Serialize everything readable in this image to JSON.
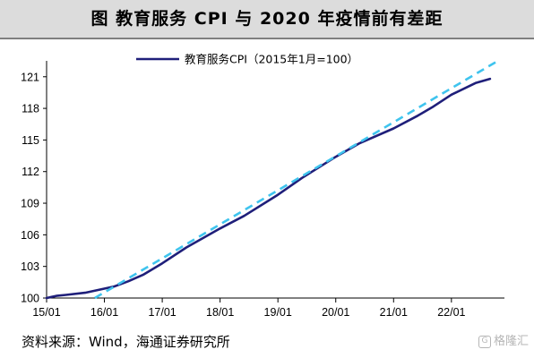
{
  "title": "图  教育服务 CPI 与 2020 年疫情前有差距",
  "source": "资料来源：Wind，海通证券研究所",
  "watermark": "格隆汇",
  "chart_data": {
    "type": "line",
    "legend": "教育服务CPI（2015年1月=100）",
    "legend_position": "top-center",
    "ylim": [
      100,
      122
    ],
    "yticks": [
      100,
      103,
      106,
      109,
      112,
      115,
      118,
      121
    ],
    "xlim": [
      "2015-01",
      "2022-12"
    ],
    "xticks": [
      "15/01",
      "16/01",
      "17/01",
      "18/01",
      "19/01",
      "20/01",
      "21/01",
      "22/01"
    ],
    "series": [
      {
        "name": "教育服务CPI（2015年1月=100）",
        "color": "#1f1f7a",
        "style": "solid",
        "points": [
          [
            "2015-01",
            100.0
          ],
          [
            "2015-02",
            100.1
          ],
          [
            "2015-03",
            100.2
          ],
          [
            "2015-05",
            100.3
          ],
          [
            "2015-09",
            100.5
          ],
          [
            "2015-12",
            100.8
          ],
          [
            "2016-03",
            101.1
          ],
          [
            "2016-06",
            101.6
          ],
          [
            "2016-09",
            102.2
          ],
          [
            "2017-01",
            103.3
          ],
          [
            "2017-06",
            104.8
          ],
          [
            "2018-01",
            106.6
          ],
          [
            "2018-06",
            107.8
          ],
          [
            "2019-01",
            109.8
          ],
          [
            "2019-06",
            111.4
          ],
          [
            "2020-01",
            113.4
          ],
          [
            "2020-06",
            114.7
          ],
          [
            "2021-01",
            116.1
          ],
          [
            "2021-06",
            117.3
          ],
          [
            "2021-09",
            118.1
          ],
          [
            "2022-01",
            119.3
          ],
          [
            "2022-06",
            120.4
          ],
          [
            "2022-09",
            120.8
          ]
        ]
      },
      {
        "name": "",
        "color": "#3fc4ee",
        "style": "dashed",
        "points": [
          [
            "2015-11",
            100.0
          ],
          [
            "2022-11",
            122.6
          ]
        ]
      }
    ]
  },
  "colors": {
    "title_bg": "#dcdcdc",
    "main_line": "#1f1f7a",
    "trend_line": "#3fc4ee"
  }
}
